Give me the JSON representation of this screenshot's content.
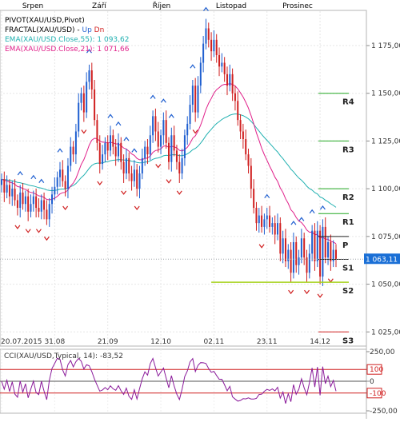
{
  "months": [
    "Srpen",
    "Září",
    "Říjen",
    "Listopad",
    "Prosinec"
  ],
  "legend": [
    {
      "text": "PIVOT(XAU/USD,Pivot)",
      "color": "#000000"
    },
    {
      "text": "FRACTAL(XAU/USD) - ",
      "color": "#000000",
      "up": "Up",
      "dn": "Dn",
      "up_color": "#1f5fd0",
      "dn_color": "#d02020"
    },
    {
      "text": "EMA(XAU/USD.Close,55): 1 093,62",
      "color": "#20b0b0"
    },
    {
      "text": "EMA(XAU/USD.Close,21): 1 071,66",
      "color": "#e0208a"
    }
  ],
  "price_label": "1 063,11",
  "cci_title": "CCI(XAU/USD,Typical, 14): -83,52",
  "chart_data": [
    {
      "type": "candlestick",
      "title": "",
      "date_labels": [
        "20.07.2015",
        "31.08",
        "21.09",
        "12.10",
        "02.11",
        "23.11",
        "14.12"
      ],
      "y_ticks": [
        "1 175,00",
        "1 150,00",
        "1 125,00",
        "1 100,00",
        "1 075,00",
        "1 050,00",
        "1 025,00"
      ],
      "y_tick_values": [
        1175,
        1150,
        1125,
        1100,
        1075,
        1050,
        1025
      ],
      "ylim": [
        1018,
        1193
      ],
      "last_price": 1063.11,
      "colors": {
        "up": "#1f5fd0",
        "down": "#d02020",
        "ema55": "#20b0b0",
        "ema21": "#e0208a",
        "pivot": "#22a822",
        "s2_line": "#a6d21c"
      },
      "pivot_levels": [
        {
          "name": "R4",
          "value": 1150
        },
        {
          "name": "R3",
          "value": 1125
        },
        {
          "name": "R2",
          "value": 1100
        },
        {
          "name": "R1",
          "value": 1087
        },
        {
          "name": "P",
          "value": 1075
        },
        {
          "name": "S1",
          "value": 1063
        },
        {
          "name": "S2",
          "value": 1051
        },
        {
          "name": "S3",
          "value": 1025
        }
      ],
      "close": [
        1105,
        1098,
        1102,
        1096,
        1100,
        1094,
        1090,
        1098,
        1092,
        1096,
        1088,
        1092,
        1096,
        1090,
        1088,
        1094,
        1089,
        1084,
        1092,
        1097,
        1101,
        1106,
        1110,
        1104,
        1100,
        1112,
        1122,
        1118,
        1130,
        1145,
        1150,
        1140,
        1156,
        1162,
        1152,
        1136,
        1124,
        1113,
        1118,
        1124,
        1120,
        1128,
        1122,
        1117,
        1124,
        1114,
        1108,
        1116,
        1108,
        1104,
        1110,
        1100,
        1108,
        1116,
        1122,
        1118,
        1128,
        1138,
        1130,
        1122,
        1128,
        1136,
        1124,
        1114,
        1128,
        1120,
        1114,
        1108,
        1116,
        1128,
        1134,
        1144,
        1154,
        1140,
        1154,
        1166,
        1176,
        1184,
        1178,
        1172,
        1178,
        1170,
        1164,
        1166,
        1160,
        1154,
        1160,
        1150,
        1146,
        1136,
        1130,
        1126,
        1118,
        1112,
        1100,
        1090,
        1082,
        1086,
        1080,
        1084,
        1086,
        1080,
        1082,
        1076,
        1082,
        1066,
        1074,
        1062,
        1068,
        1056,
        1072,
        1060,
        1064,
        1074,
        1064,
        1056,
        1066,
        1078,
        1062,
        1078,
        1054,
        1080,
        1064,
        1072,
        1062,
        1068,
        1063
      ],
      "cci": {
        "title": "CCI(XAU/USD,Typical, 14)",
        "value": -83.52,
        "ticks": [
          "250,00",
          "100",
          "0",
          "-100",
          "-250,00"
        ],
        "tick_values": [
          250,
          100,
          0,
          -100,
          -250
        ],
        "ylim": [
          -250,
          250
        ],
        "color": "#8a1a9a"
      }
    }
  ]
}
